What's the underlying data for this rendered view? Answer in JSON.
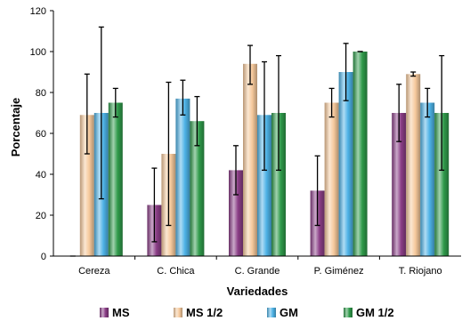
{
  "chart_data": {
    "type": "bar",
    "title": "",
    "xlabel": "Variedades",
    "ylabel": "Porcentaje",
    "ylim": [
      0,
      120
    ],
    "yticks": [
      "0",
      "20",
      "40",
      "60",
      "80",
      "100",
      "120"
    ],
    "categories": [
      "Cereza",
      "C. Chica",
      "C. Grande",
      "P. Giménez",
      "T. Riojano"
    ],
    "grid": false,
    "legend_position": "bottom",
    "error_bars": true,
    "series": [
      {
        "name": "MS",
        "color": "#8a3d86",
        "values": [
          0,
          25,
          42,
          32,
          70
        ],
        "err_low": [
          0,
          7,
          30,
          15,
          56
        ],
        "err_high": [
          0,
          43,
          54,
          49,
          84
        ]
      },
      {
        "name": "MS 1/2",
        "color": "#f6c99c",
        "values": [
          69,
          50,
          94,
          75,
          89
        ],
        "err_low": [
          50,
          15,
          84,
          68,
          88
        ],
        "err_high": [
          89,
          85,
          103,
          82,
          90
        ]
      },
      {
        "name": "GM",
        "color": "#4db2e6",
        "values": [
          70,
          77,
          69,
          90,
          75
        ],
        "err_low": [
          28,
          69,
          42,
          76,
          68
        ],
        "err_high": [
          112,
          86,
          95,
          104,
          82
        ]
      },
      {
        "name": "GM 1/2",
        "color": "#2f9a4a",
        "values": [
          75,
          66,
          70,
          100,
          70
        ],
        "err_low": [
          68,
          54,
          42,
          100,
          42
        ],
        "err_high": [
          82,
          78,
          98,
          100,
          98
        ]
      }
    ]
  }
}
